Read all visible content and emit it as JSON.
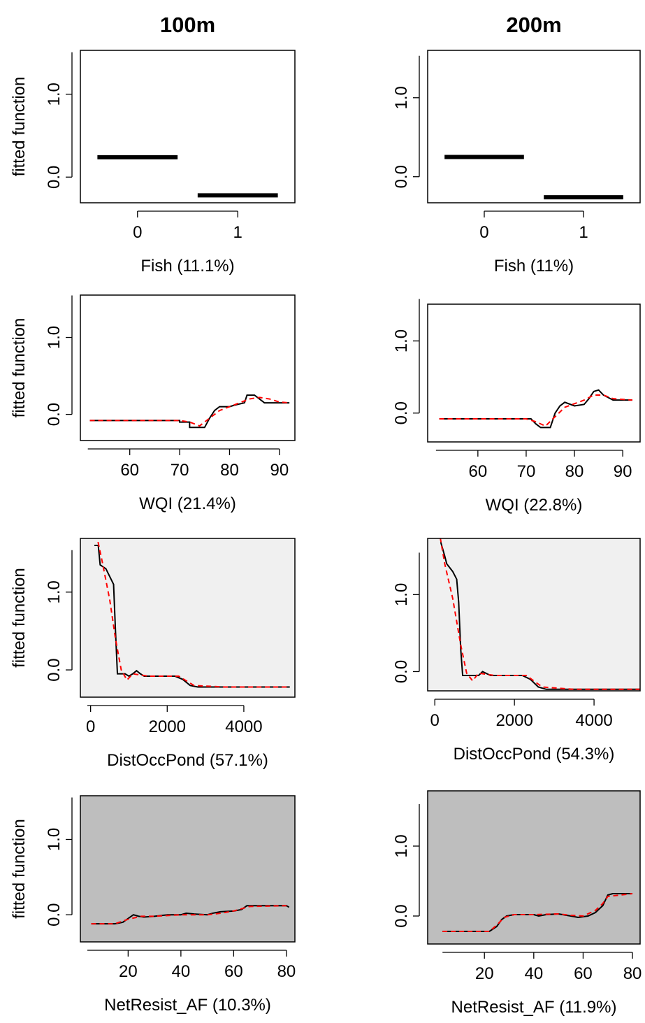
{
  "chart_data": [
    {
      "type": "factor",
      "title": "100m",
      "categories": [
        "0",
        "1"
      ],
      "values": [
        0.24,
        -0.22
      ],
      "color": "#000000",
      "xlabel": "Fish (11.1%)",
      "ylabel": "fitted function",
      "ylim": [
        -0.31,
        1.53
      ],
      "yticks": [
        {
          "value": 0,
          "label": "0.0"
        },
        {
          "value": 1,
          "label": "1.0"
        }
      ],
      "background": "#ffffff"
    },
    {
      "type": "factor",
      "title": "200m",
      "categories": [
        "0",
        "1"
      ],
      "values": [
        0.25,
        -0.26
      ],
      "color": "#000000",
      "xlabel": "Fish (11%)",
      "ylim": [
        -0.33,
        1.6
      ],
      "yticks": [
        {
          "value": 0,
          "label": "0.0"
        },
        {
          "value": 1,
          "label": "1.0"
        }
      ],
      "background": "#ffffff"
    },
    {
      "type": "line",
      "xlabel": "WQI (21.4%)",
      "ylabel": "fitted function",
      "xlim": [
        50.1,
        93.1
      ],
      "xticks": [
        60,
        70,
        80,
        90
      ],
      "ylim": [
        -0.34,
        1.55
      ],
      "yticks": [
        {
          "value": 0,
          "label": "0.0"
        },
        {
          "value": 1,
          "label": "1.0"
        }
      ],
      "background": "#ffffff",
      "series": [
        {
          "color": "#000000",
          "dash": false,
          "x": [
            52,
            70,
            70,
            72,
            72,
            75,
            76,
            77,
            78,
            80,
            81,
            83,
            83.5,
            85,
            86,
            87,
            92
          ],
          "values": [
            -0.08,
            -0.08,
            -0.1,
            -0.1,
            -0.17,
            -0.17,
            -0.05,
            0.05,
            0.1,
            0.1,
            0.12,
            0.15,
            0.25,
            0.25,
            0.2,
            0.15,
            0.15
          ]
        },
        {
          "color": "#ff0000",
          "dash": true,
          "x": [
            52,
            60,
            70,
            72,
            74,
            76,
            78,
            80,
            82,
            84,
            86,
            88,
            90,
            92
          ],
          "values": [
            -0.08,
            -0.08,
            -0.08,
            -0.1,
            -0.15,
            -0.05,
            0.05,
            0.1,
            0.15,
            0.2,
            0.22,
            0.2,
            0.16,
            0.15
          ]
        }
      ]
    },
    {
      "type": "line",
      "xlabel": "WQI (22.8%)",
      "xlim": [
        49.6,
        93.6
      ],
      "xticks": [
        60,
        70,
        80,
        90
      ],
      "ylim": [
        -0.4,
        1.51
      ],
      "yticks": [
        {
          "value": 0,
          "label": "0.0"
        },
        {
          "value": 1,
          "label": "1.0"
        }
      ],
      "background": "#ffffff",
      "series": [
        {
          "color": "#000000",
          "dash": false,
          "x": [
            52,
            71,
            72,
            73,
            75,
            76,
            77,
            78,
            80,
            82,
            83,
            84,
            85,
            86,
            88,
            92
          ],
          "values": [
            -0.08,
            -0.08,
            -0.15,
            -0.2,
            -0.2,
            0,
            0.1,
            0.15,
            0.1,
            0.12,
            0.2,
            0.3,
            0.32,
            0.25,
            0.18,
            0.18
          ]
        },
        {
          "color": "#ff0000",
          "dash": true,
          "x": [
            52,
            70,
            72,
            74,
            76,
            78,
            80,
            82,
            84,
            86,
            88,
            92
          ],
          "values": [
            -0.08,
            -0.08,
            -0.12,
            -0.18,
            -0.05,
            0.08,
            0.13,
            0.18,
            0.25,
            0.25,
            0.2,
            0.18
          ]
        }
      ]
    },
    {
      "type": "line",
      "xlabel": "DistOccPond (57.1%)",
      "ylabel": "fitted function",
      "xlim": [
        -267,
        5333
      ],
      "xticks": [
        0,
        2000,
        4000
      ],
      "ylim": [
        -0.35,
        1.69
      ],
      "yticks": [
        {
          "value": 0,
          "label": "0.0"
        },
        {
          "value": 1,
          "label": "1.0"
        }
      ],
      "background": "#f0f0f0",
      "series": [
        {
          "color": "#000000",
          "dash": false,
          "x": [
            100,
            200,
            250,
            400,
            500,
            600,
            650,
            700,
            900,
            1000,
            1100,
            1200,
            1300,
            1400,
            2200,
            2400,
            2600,
            2800,
            3500,
            5200
          ],
          "values": [
            1.6,
            1.6,
            1.35,
            1.3,
            1.2,
            1.1,
            0.5,
            -0.05,
            -0.05,
            -0.08,
            -0.05,
            -0.01,
            -0.05,
            -0.08,
            -0.08,
            -0.12,
            -0.2,
            -0.22,
            -0.22,
            -0.22
          ]
        },
        {
          "color": "#ff0000",
          "dash": true,
          "x": [
            150,
            300,
            500,
            650,
            800,
            950,
            1100,
            1500,
            2300,
            2700,
            3500,
            4500,
            5200
          ],
          "values": [
            1.75,
            1.4,
            0.9,
            0.4,
            0.0,
            -0.13,
            -0.05,
            -0.08,
            -0.08,
            -0.2,
            -0.22,
            -0.22,
            -0.22
          ]
        }
      ]
    },
    {
      "type": "line",
      "xlabel": "DistOccPond (54.3%)",
      "xlim": [
        -179,
        5157
      ],
      "xticks": [
        0,
        2000,
        4000
      ],
      "ylim": [
        -0.25,
        1.73
      ],
      "yticks": [
        {
          "value": 0,
          "label": "0.0"
        },
        {
          "value": 1,
          "label": "1.0"
        }
      ],
      "background": "#f0f0f0",
      "series": [
        {
          "color": "#000000",
          "dash": false,
          "x": [
            150,
            250,
            300,
            450,
            550,
            600,
            650,
            700,
            900,
            1100,
            1200,
            1400,
            2000,
            2200,
            2400,
            2600,
            2800,
            5200
          ],
          "values": [
            1.68,
            1.5,
            1.4,
            1.3,
            1.2,
            0.9,
            0.3,
            -0.05,
            -0.05,
            -0.05,
            0.0,
            -0.05,
            -0.05,
            -0.05,
            -0.1,
            -0.2,
            -0.23,
            -0.23
          ]
        },
        {
          "color": "#ff0000",
          "dash": true,
          "x": [
            100,
            250,
            450,
            650,
            800,
            950,
            1100,
            1500,
            2300,
            2700,
            3500,
            5200
          ],
          "values": [
            1.85,
            1.4,
            0.95,
            0.35,
            -0.02,
            -0.12,
            -0.02,
            -0.05,
            -0.05,
            -0.2,
            -0.23,
            -0.23
          ]
        }
      ]
    },
    {
      "type": "line",
      "xlabel": "NetResist_AF (10.3%)",
      "ylabel": "fitted function",
      "xlim": [
        1.9,
        83.2
      ],
      "xticks": [
        20,
        40,
        60,
        80
      ],
      "ylim": [
        -0.36,
        1.58
      ],
      "yticks": [
        {
          "value": 0,
          "label": "0.0"
        },
        {
          "value": 1,
          "label": "1.0"
        }
      ],
      "background": "#bebebe",
      "series": [
        {
          "color": "#000000",
          "dash": false,
          "x": [
            6,
            15,
            18,
            20,
            22,
            24,
            26,
            30,
            35,
            40,
            42,
            45,
            50,
            52,
            55,
            60,
            63,
            65,
            80,
            81
          ],
          "values": [
            -0.12,
            -0.12,
            -0.1,
            -0.05,
            0.0,
            -0.02,
            -0.03,
            -0.02,
            0,
            0.0,
            0.02,
            0.01,
            0,
            0.02,
            0.04,
            0.05,
            0.07,
            0.12,
            0.12,
            0.1
          ]
        },
        {
          "color": "#ff0000",
          "dash": true,
          "x": [
            6,
            15,
            20,
            25,
            30,
            40,
            50,
            55,
            60,
            63,
            66,
            80
          ],
          "values": [
            -0.12,
            -0.12,
            -0.06,
            -0.02,
            -0.02,
            0.0,
            0.0,
            0.02,
            0.05,
            0.08,
            0.11,
            0.12
          ]
        }
      ]
    },
    {
      "type": "line",
      "xlabel": "NetResist_AF (11.9%)",
      "xlim": [
        -3,
        83.1
      ],
      "xticks": [
        20,
        40,
        60,
        80
      ],
      "ylim": [
        -0.4,
        1.79
      ],
      "yticks": [
        {
          "value": 0,
          "label": "0.0"
        },
        {
          "value": 1,
          "label": "1.0"
        }
      ],
      "background": "#bebebe",
      "series": [
        {
          "color": "#000000",
          "dash": false,
          "x": [
            3,
            22,
            25,
            27,
            29,
            32,
            40,
            42,
            45,
            50,
            55,
            58,
            62,
            65,
            68,
            70,
            72,
            80
          ],
          "values": [
            -0.22,
            -0.22,
            -0.15,
            -0.05,
            0.0,
            0.02,
            0.02,
            0.0,
            0.02,
            0.03,
            0.0,
            -0.02,
            0.0,
            0.05,
            0.15,
            0.3,
            0.32,
            0.32
          ]
        },
        {
          "color": "#ff0000",
          "dash": true,
          "x": [
            3,
            22,
            25,
            28,
            32,
            40,
            50,
            55,
            60,
            65,
            68,
            70,
            80
          ],
          "values": [
            -0.22,
            -0.22,
            -0.13,
            -0.02,
            0.02,
            0.02,
            0.03,
            0.01,
            0.0,
            0.08,
            0.18,
            0.28,
            0.32
          ]
        }
      ]
    }
  ]
}
